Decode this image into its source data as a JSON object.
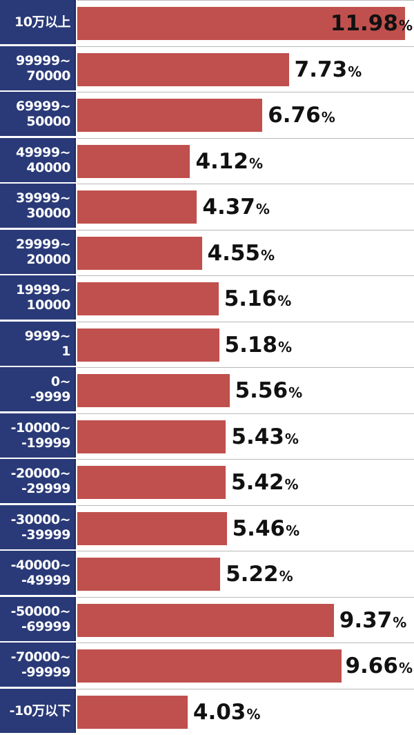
{
  "chart_data": {
    "type": "bar",
    "orientation": "horizontal",
    "unit": "%",
    "xlim": [
      0,
      12.3
    ],
    "colors": {
      "bar": "#c0504d",
      "label_bg": "#2a3a78",
      "label_text": "#ffffff"
    },
    "categories": [
      [
        "10万以上"
      ],
      [
        "99999~",
        "70000"
      ],
      [
        "69999~",
        "50000"
      ],
      [
        "49999~",
        "40000"
      ],
      [
        "39999~",
        "30000"
      ],
      [
        "29999~",
        "20000"
      ],
      [
        "19999~",
        "10000"
      ],
      [
        "9999~",
        "1"
      ],
      [
        "0~",
        "-9999"
      ],
      [
        "-10000~",
        "-19999"
      ],
      [
        "-20000~",
        "-29999"
      ],
      [
        "-30000~",
        "-39999"
      ],
      [
        "-40000~",
        "-49999"
      ],
      [
        "-50000~",
        "-69999"
      ],
      [
        "-70000~",
        "-99999"
      ],
      [
        "-10万以下"
      ]
    ],
    "values": [
      11.98,
      7.73,
      6.76,
      4.12,
      4.37,
      4.55,
      5.16,
      5.18,
      5.56,
      5.43,
      5.42,
      5.46,
      5.22,
      9.37,
      9.66,
      4.03
    ],
    "value_labels": [
      "11.98",
      "7.73",
      "6.76",
      "4.12",
      "4.37",
      "4.55",
      "5.16",
      "5.18",
      "5.56",
      "5.43",
      "5.42",
      "5.46",
      "5.22",
      "9.37",
      "9.66",
      "4.03"
    ]
  }
}
